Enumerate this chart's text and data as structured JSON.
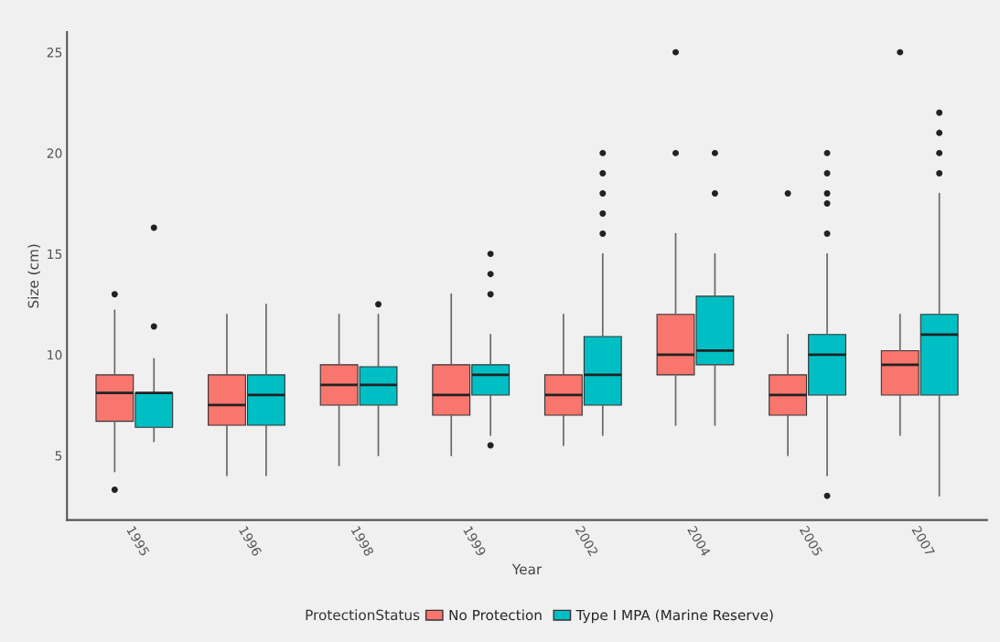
{
  "chart_data": {
    "type": "box",
    "xlabel": "Year",
    "ylabel": "Size (cm)",
    "legend_title": "ProtectionStatus",
    "legend": "bottom",
    "grid": false,
    "categories": [
      "1995",
      "1996",
      "1998",
      "1999",
      "2002",
      "2004",
      "2005",
      "2007"
    ],
    "ylim": [
      1.8,
      26
    ],
    "yticks": [
      5,
      10,
      15,
      20,
      25
    ],
    "series": [
      {
        "name": "No Protection",
        "color": "#f8766d",
        "boxes": [
          {
            "low": 4.2,
            "q1": 6.7,
            "median": 8.1,
            "q3": 9,
            "high": 12.2,
            "outliers": [
              13,
              3.3
            ]
          },
          {
            "low": 4,
            "q1": 6.5,
            "median": 7.5,
            "q3": 9,
            "high": 12
          },
          {
            "low": 4.5,
            "q1": 7.5,
            "median": 8.5,
            "q3": 9.5,
            "high": 12
          },
          {
            "low": 5,
            "q1": 7,
            "median": 8,
            "q3": 9.5,
            "high": 13
          },
          {
            "low": 5.5,
            "q1": 7,
            "median": 8,
            "q3": 9,
            "high": 12
          },
          {
            "low": 6.5,
            "q1": 9,
            "median": 10,
            "q3": 12,
            "high": 16,
            "outliers": [
              20,
              25
            ]
          },
          {
            "low": 5,
            "q1": 7,
            "median": 8,
            "q3": 9,
            "high": 11,
            "outliers": [
              18
            ]
          },
          {
            "low": 6,
            "q1": 8,
            "median": 9.5,
            "q3": 10.2,
            "high": 12,
            "outliers": [
              25
            ]
          }
        ]
      },
      {
        "name": "Type I MPA (Marine Reserve)",
        "color": "#00bfc4",
        "boxes": [
          {
            "low": 5.7,
            "q1": 6.4,
            "median": 8.1,
            "q3": 8.1,
            "high": 9.8,
            "outliers": [
              11.4,
              16.3
            ]
          },
          {
            "low": 4,
            "q1": 6.5,
            "median": 8,
            "q3": 9,
            "high": 12.5
          },
          {
            "low": 5,
            "q1": 7.5,
            "median": 8.5,
            "q3": 9.4,
            "high": 12,
            "outliers": [
              12.5
            ]
          },
          {
            "low": 6,
            "q1": 8,
            "median": 9,
            "q3": 9.5,
            "high": 11,
            "outliers": [
              13,
              14,
              15,
              5.5
            ]
          },
          {
            "low": 6,
            "q1": 7.5,
            "median": 9,
            "q3": 10.9,
            "high": 15,
            "outliers": [
              16,
              17,
              18,
              19,
              20
            ]
          },
          {
            "low": 6.5,
            "q1": 9.5,
            "median": 10.2,
            "q3": 12.9,
            "high": 15,
            "outliers": [
              18,
              20
            ]
          },
          {
            "low": 4,
            "q1": 8,
            "median": 10,
            "q3": 11,
            "high": 15,
            "outliers": [
              16,
              17.5,
              18,
              19,
              20,
              3
            ]
          },
          {
            "low": 3,
            "q1": 8,
            "median": 11,
            "q3": 12,
            "high": 18,
            "outliers": [
              19,
              20,
              21,
              22
            ]
          }
        ]
      }
    ]
  }
}
